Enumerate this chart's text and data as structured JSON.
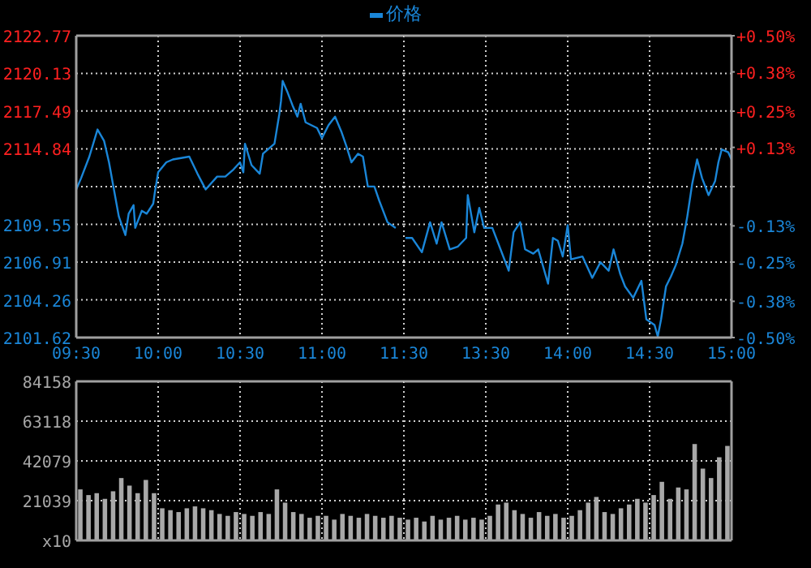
{
  "chart_data": [
    {
      "type": "line",
      "legend": "top",
      "grid": true,
      "xlim": [
        9.5,
        11.5
      ],
      "xticks": [
        {
          "value": 9.5,
          "label": "09:30"
        },
        {
          "value": 10,
          "label": "10:00"
        },
        {
          "value": 10.5,
          "label": "10:30"
        },
        {
          "value": 11,
          "label": "11:00"
        },
        {
          "value": 11.5,
          "label": "11:30"
        }
      ],
      "ylim": [
        2101.62,
        2122.77
      ],
      "yticks": [
        2101.62,
        2104.26,
        2106.91,
        2109.55,
        {
          "value": 2112.2,
          "label": null
        },
        2114.84,
        2117.49,
        2120.13,
        2122.77
      ],
      "series": [
        {
          "name": "价格",
          "color": "#1a86d8",
          "x": [
            9.5,
            9.53,
            9.58,
            9.63,
            9.67,
            9.7,
            9.73,
            9.76,
            9.8,
            9.82,
            9.85,
            9.86,
            9.9,
            9.93,
            9.97,
            9.98,
            10.0,
            10.05,
            10.09,
            10.19,
            10.24,
            10.29,
            10.36,
            10.41,
            10.46,
            10.5,
            10.52,
            10.53,
            10.57,
            10.62,
            10.64,
            10.71,
            10.74,
            10.75,
            10.76,
            10.79,
            10.82,
            10.85,
            10.87,
            10.9,
            10.97,
            11.0,
            11.04,
            11.08,
            11.12,
            11.15,
            11.18,
            11.22,
            11.25,
            11.28,
            11.32,
            11.35,
            11.4,
            11.45
          ],
          "values": [
            2112.0,
            2112.8,
            2114.3,
            2116.2,
            2115.4,
            2113.9,
            2112.0,
            2110.1,
            2108.8,
            2110.3,
            2110.9,
            2109.3,
            2110.5,
            2110.3,
            2111.0,
            2111.8,
            2113.2,
            2113.9,
            2114.1,
            2114.3,
            2113.1,
            2112.0,
            2112.9,
            2112.9,
            2113.4,
            2113.9,
            2113.2,
            2115.2,
            2113.7,
            2113.1,
            2114.5,
            2115.2,
            2117.3,
            2118.2,
            2119.6,
            2118.8,
            2117.9,
            2117.1,
            2118.0,
            2116.7,
            2116.3,
            2115.6,
            2116.5,
            2117.1,
            2116.0,
            2115.0,
            2113.9,
            2114.5,
            2114.3,
            2112.2,
            2112.2,
            2111.2,
            2109.7,
            2109.3
          ]
        }
      ]
    },
    {
      "type": "line",
      "grid": true,
      "tick_labels": "x",
      "xlim": [
        13,
        15
      ],
      "xticks": [
        {
          "value": 13,
          "label": null
        },
        {
          "value": 13.5,
          "label": "13:30"
        },
        {
          "value": 14,
          "label": "14:00"
        },
        {
          "value": 14.5,
          "label": "14:30"
        },
        {
          "value": 15,
          "label": "15:00"
        }
      ],
      "ylim": [
        2101.62,
        2122.77
      ],
      "yticks": [
        2101.62,
        2104.26,
        2106.91,
        2109.55,
        2112.2,
        2114.84,
        2117.49,
        2120.13,
        2122.77
      ],
      "y2lim": [
        -0.5,
        0.5
      ],
      "y2ticks": [
        {
          "value": -0.5,
          "label": "-0.50%"
        },
        {
          "value": -0.38,
          "label": "-0.38%"
        },
        {
          "value": -0.25,
          "label": "-0.25%"
        },
        {
          "value": -0.13,
          "label": "-0.13%"
        },
        {
          "value": 0,
          "label": null
        },
        {
          "value": 0.13,
          "label": "+0.13%"
        },
        {
          "value": 0.25,
          "label": "+0.25%"
        },
        {
          "value": 0.38,
          "label": "+0.38%"
        },
        {
          "value": 0.5,
          "label": "+0.50%"
        }
      ],
      "series": [
        {
          "color": "#1a86d8",
          "x": [
            13.01,
            13.05,
            13.11,
            13.16,
            13.2,
            13.23,
            13.28,
            13.33,
            13.38,
            13.39,
            13.43,
            13.46,
            13.49,
            13.54,
            13.59,
            13.64,
            13.67,
            13.71,
            13.74,
            13.79,
            13.82,
            13.88,
            13.91,
            13.94,
            13.97,
            14.0,
            14.02,
            14.09,
            14.15,
            14.2,
            14.25,
            14.28,
            14.32,
            14.35,
            14.4,
            14.45,
            14.48,
            14.53,
            14.55,
            14.57,
            14.6,
            14.63,
            14.66,
            14.7,
            14.73,
            14.76,
            14.79,
            14.82,
            14.86,
            14.9,
            14.92,
            14.94,
            14.98,
            15.0
          ],
          "values": [
            2108.6,
            2108.6,
            2107.6,
            2109.7,
            2108.2,
            2109.7,
            2107.8,
            2108.0,
            2108.6,
            2111.6,
            2109.0,
            2110.7,
            2109.3,
            2109.3,
            2107.8,
            2106.3,
            2109.0,
            2109.7,
            2107.8,
            2107.5,
            2107.8,
            2105.4,
            2108.6,
            2108.4,
            2107.3,
            2109.5,
            2107.1,
            2107.3,
            2105.8,
            2106.9,
            2106.3,
            2107.8,
            2106.1,
            2105.2,
            2104.4,
            2105.6,
            2102.9,
            2102.5,
            2101.7,
            2102.9,
            2105.2,
            2105.9,
            2106.7,
            2108.2,
            2110.1,
            2112.4,
            2114.1,
            2112.8,
            2111.6,
            2112.6,
            2113.9,
            2114.8,
            2114.6,
            2114.1
          ]
        }
      ]
    },
    {
      "type": "bar",
      "grid": true,
      "tick_labels": "y",
      "xlim": [
        9.5,
        11.5
      ],
      "xticks": [
        {
          "value": 9.5,
          "label": null
        },
        {
          "value": 10,
          "label": null
        },
        {
          "value": 10.5,
          "label": null
        },
        {
          "value": 11,
          "label": null
        },
        {
          "value": 11.5,
          "label": null
        }
      ],
      "ylim": [
        0,
        84158
      ],
      "yticks": [
        {
          "value": 0,
          "label": "x10"
        },
        21039,
        42079,
        63118,
        84158
      ],
      "series": [
        {
          "color": "#a8a8a8",
          "x": [
            9.525,
            9.575,
            9.625,
            9.675,
            9.725,
            9.775,
            9.825,
            9.875,
            9.925,
            9.975,
            10.025,
            10.075,
            10.125,
            10.175,
            10.225,
            10.275,
            10.325,
            10.375,
            10.425,
            10.475,
            10.525,
            10.575,
            10.625,
            10.675,
            10.725,
            10.775,
            10.825,
            10.875,
            10.925,
            10.975,
            11.025,
            11.075,
            11.125,
            11.175,
            11.225,
            11.275,
            11.325,
            11.375,
            11.425,
            11.475
          ],
          "values": [
            27000,
            24000,
            25000,
            22000,
            26000,
            33000,
            29000,
            25000,
            32000,
            25000,
            17000,
            16000,
            15000,
            17000,
            18000,
            17000,
            16000,
            14000,
            13000,
            15000,
            14000,
            13000,
            15000,
            14000,
            27000,
            20000,
            15000,
            14000,
            12000,
            13000,
            13000,
            11000,
            14000,
            13000,
            12000,
            14000,
            13000,
            12000,
            13000,
            12000
          ]
        }
      ]
    },
    {
      "type": "bar",
      "grid": true,
      "tick_labels": false,
      "xlim": [
        13,
        15
      ],
      "xticks": [
        {
          "value": 13,
          "label": null
        },
        {
          "value": 13.5,
          "label": null
        },
        {
          "value": 14,
          "label": null
        },
        {
          "value": 14.5,
          "label": null
        },
        {
          "value": 15,
          "label": null
        }
      ],
      "ylim": [
        0,
        84158
      ],
      "yticks": [
        0,
        21039,
        42079,
        63118,
        84158
      ],
      "series": [
        {
          "color": "#a8a8a8",
          "x": [
            13.025,
            13.075,
            13.125,
            13.175,
            13.225,
            13.275,
            13.325,
            13.375,
            13.425,
            13.475,
            13.525,
            13.575,
            13.625,
            13.675,
            13.725,
            13.775,
            13.825,
            13.875,
            13.925,
            13.975,
            14.025,
            14.075,
            14.125,
            14.175,
            14.225,
            14.275,
            14.325,
            14.375,
            14.425,
            14.475,
            14.525,
            14.575,
            14.625,
            14.675,
            14.725,
            14.775,
            14.825,
            14.875,
            14.925,
            14.975
          ],
          "values": [
            11000,
            12000,
            10000,
            13000,
            11000,
            12000,
            13000,
            11000,
            12000,
            11000,
            13000,
            19000,
            20000,
            16000,
            14000,
            12000,
            15000,
            13000,
            14000,
            12000,
            13000,
            16000,
            20000,
            23000,
            15000,
            14000,
            17000,
            19000,
            22000,
            20000,
            24000,
            31000,
            22000,
            28000,
            27000,
            51000,
            38000,
            33000,
            44000,
            50000
          ]
        }
      ]
    }
  ]
}
